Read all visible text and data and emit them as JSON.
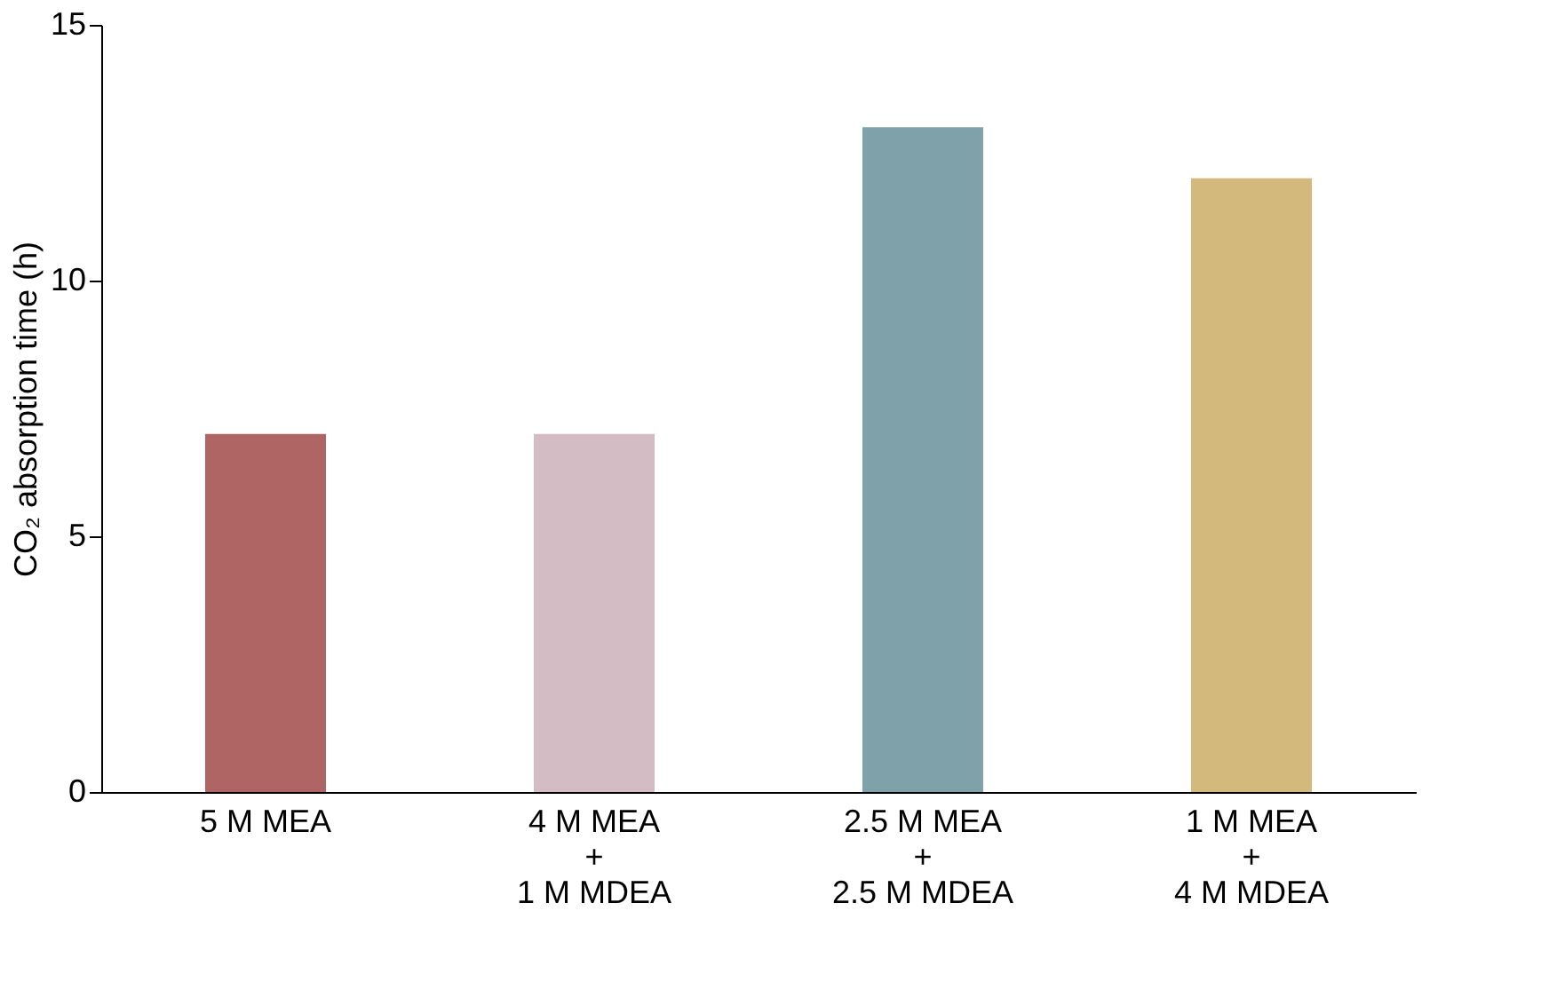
{
  "chart_data": {
    "type": "bar",
    "ylabel": "CO₂ absorption time (h)",
    "categories": [
      "5 M MEA",
      "4 M MEA\n+\n1 M MDEA",
      "2.5 M MEA\n+\n2.5 M MDEA",
      "1 M MEA\n+\n4 M MDEA"
    ],
    "values": [
      7,
      7,
      13,
      12
    ],
    "colors": [
      "#b06565",
      "#d4bcc5",
      "#7fa2aa",
      "#d4b97c"
    ],
    "ylim": [
      0,
      15
    ],
    "yticks": [
      0,
      5,
      10,
      15
    ],
    "grid": false
  }
}
